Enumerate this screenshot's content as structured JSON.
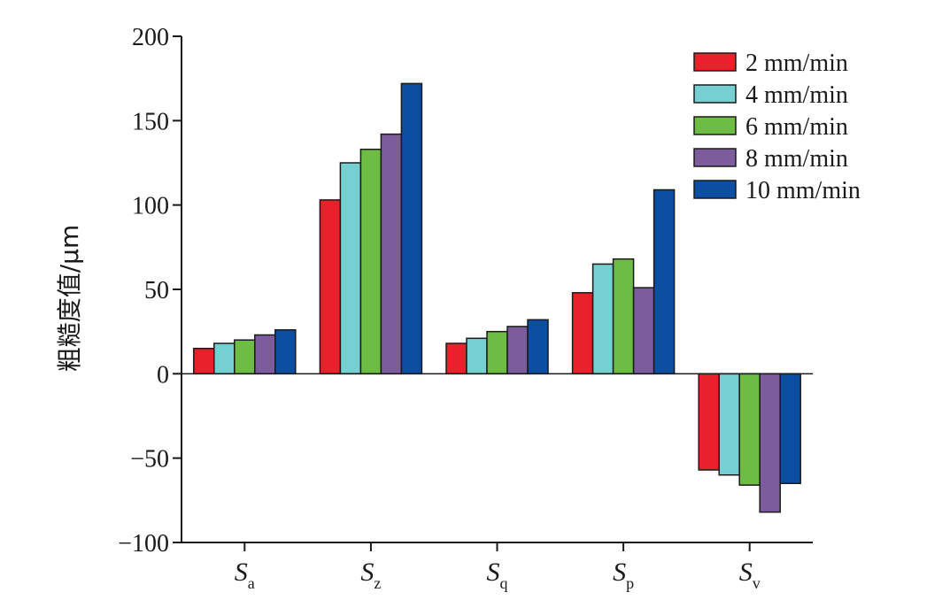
{
  "chart_data": {
    "type": "bar",
    "categories": [
      {
        "main": "S",
        "sub": "a"
      },
      {
        "main": "S",
        "sub": "z"
      },
      {
        "main": "S",
        "sub": "q"
      },
      {
        "main": "S",
        "sub": "p"
      },
      {
        "main": "S",
        "sub": "v"
      }
    ],
    "series": [
      {
        "name": "2 mm/min",
        "color": "#e8212b",
        "values": [
          15,
          103,
          18,
          48,
          -57
        ]
      },
      {
        "name": "4 mm/min",
        "color": "#76cfd0",
        "values": [
          18,
          125,
          21,
          65,
          -60
        ]
      },
      {
        "name": "6 mm/min",
        "color": "#6dbd45",
        "values": [
          20,
          133,
          25,
          68,
          -66
        ]
      },
      {
        "name": "8 mm/min",
        "color": "#7d5c9e",
        "values": [
          23,
          142,
          28,
          51,
          -82
        ]
      },
      {
        "name": "10 mm/min",
        "color": "#0b4ea2",
        "values": [
          26,
          172,
          32,
          109,
          -65
        ]
      }
    ],
    "ylabel": "粗糙度值/μm",
    "ylim": [
      -100,
      200
    ],
    "yticks": [
      200,
      150,
      100,
      50,
      0,
      -50,
      -100
    ],
    "ytick_labels": [
      "200",
      "150",
      "100",
      "50",
      "0",
      "−50",
      "−100"
    ],
    "legend_position": "top-right",
    "grid": false
  }
}
